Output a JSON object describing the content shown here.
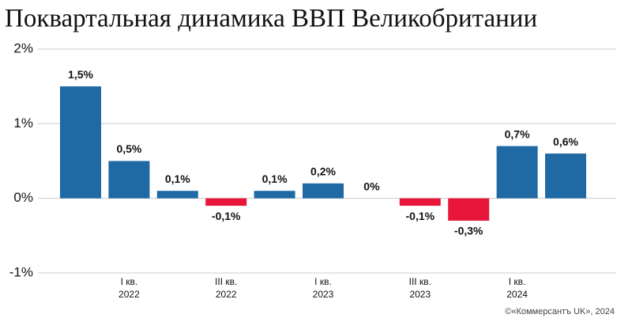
{
  "chart_data": {
    "type": "bar",
    "title": "Поквартальная динамика ВВП Великобритании",
    "categories": [
      null,
      [
        "I кв.",
        "2022"
      ],
      null,
      [
        "III кв.",
        "2022"
      ],
      null,
      [
        "I кв.",
        "2023"
      ],
      null,
      [
        "III кв.",
        "2023"
      ],
      null,
      [
        "I кв.",
        "2024"
      ],
      null
    ],
    "values": [
      1.5,
      0.5,
      0.1,
      -0.1,
      0.1,
      0.2,
      0,
      -0.1,
      -0.3,
      0.7,
      0.6
    ],
    "value_labels": [
      "1,5%",
      "0,5%",
      "0,1%",
      "-0,1%",
      "0,1%",
      "0,2%",
      "0%",
      "-0,1%",
      "-0,3%",
      "0,7%",
      "0,6%"
    ],
    "color": "#1f69a4",
    "negative_color": "#e8173a",
    "ylim": [
      -1,
      2
    ],
    "yticks": [
      {
        "value": 2,
        "label": "2%"
      },
      {
        "value": 1,
        "label": "1%"
      },
      {
        "value": 0,
        "label": "0%"
      },
      {
        "value": -1,
        "label": "-1%"
      }
    ],
    "grid": true,
    "source": "©«Коммерсантъ UK», 2024"
  }
}
